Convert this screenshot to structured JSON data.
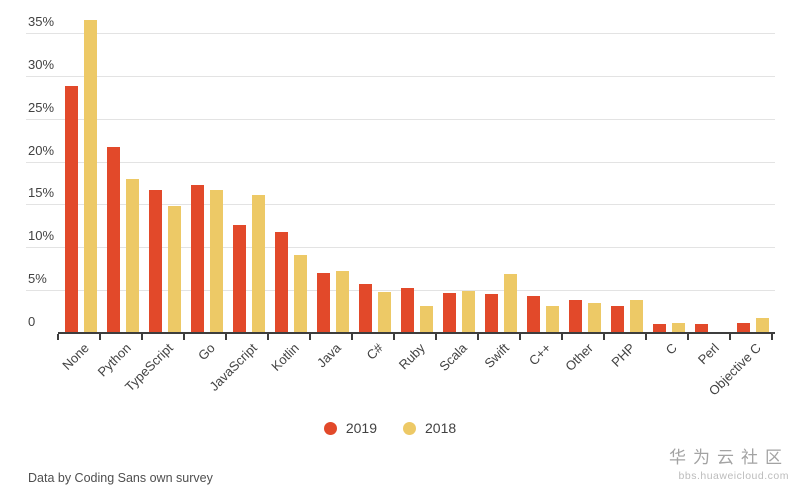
{
  "chart_data": {
    "type": "bar",
    "title": "",
    "xlabel": "",
    "ylabel": "",
    "categories": [
      "None",
      "Python",
      "TypeScript",
      "Go",
      "JavaScript",
      "Kotlin",
      "Java",
      "C#",
      "Ruby",
      "Scala",
      "Swift",
      "C++",
      "Other",
      "PHP",
      "C",
      "Perl",
      "Objective C"
    ],
    "series": [
      {
        "name": "2019",
        "color": "#e2492a",
        "values": [
          28.8,
          21.7,
          16.7,
          17.3,
          12.6,
          11.8,
          7.0,
          5.7,
          5.2,
          4.7,
          4.6,
          4.3,
          3.8,
          3.2,
          1.1,
          1.1,
          1.2
        ]
      },
      {
        "name": "2018",
        "color": "#edc966",
        "values": [
          36.5,
          18.0,
          14.8,
          16.7,
          16.1,
          9.1,
          7.2,
          4.8,
          3.2,
          4.9,
          6.9,
          3.1,
          3.5,
          3.9,
          1.2,
          0,
          1.7
        ]
      }
    ],
    "ylim": [
      0,
      37.4
    ],
    "yticks": [
      {
        "value": 0,
        "label": "0"
      },
      {
        "value": 5,
        "label": "5%"
      },
      {
        "value": 10,
        "label": "10%"
      },
      {
        "value": 15,
        "label": "15%"
      },
      {
        "value": 20,
        "label": "20%"
      },
      {
        "value": 25,
        "label": "25%"
      },
      {
        "value": 30,
        "label": "30%"
      },
      {
        "value": 35,
        "label": "35%"
      }
    ],
    "grid": true,
    "legend_position": "bottom"
  },
  "footer": {
    "caption": "Data by Coding Sans own survey"
  },
  "watermark": {
    "title": "华为云社区",
    "subtitle": "bbs.huaweicloud.com"
  }
}
